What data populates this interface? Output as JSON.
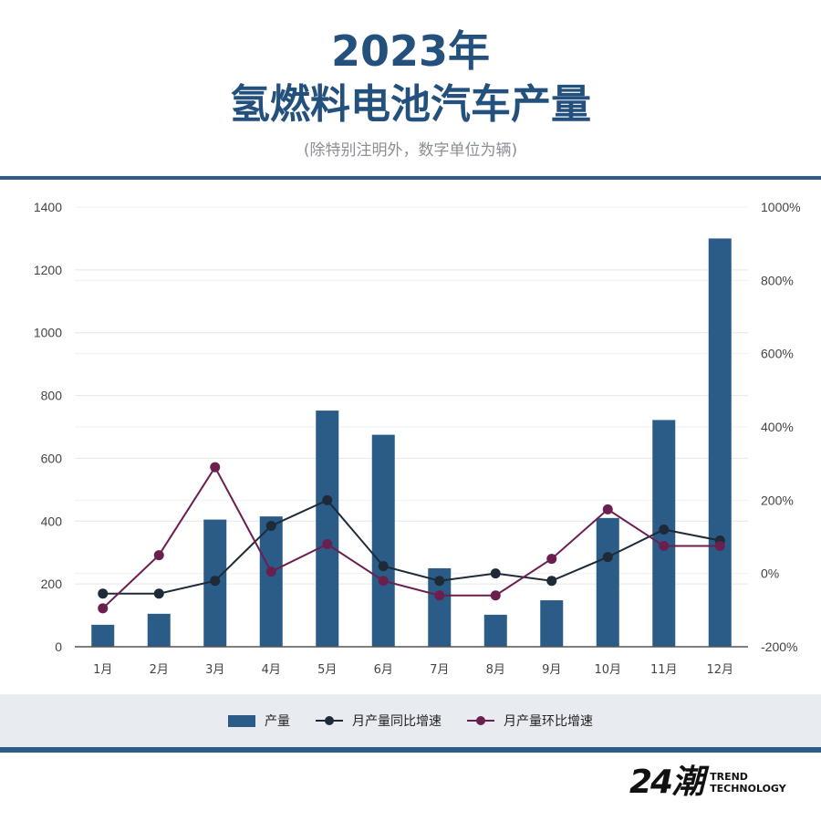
{
  "title": "2023年",
  "subtitle_title": "氢燃料电池汽车产量",
  "note": "(除特别注明外，数字单位为辆)",
  "legend": {
    "bar_label": "产量",
    "yoy_label": "月产量同比增速",
    "mom_label": "月产量环比增速"
  },
  "logo": {
    "mark": "24潮",
    "line1": "TREND",
    "line2": "TECHNOLOGY"
  },
  "colors": {
    "bar": "#2b5c88",
    "yoy": "#1e2a38",
    "mom": "#6b1f4e",
    "title": "#23507d"
  },
  "chart_data": {
    "type": "bar",
    "categories": [
      "1月",
      "2月",
      "3月",
      "4月",
      "5月",
      "6月",
      "7月",
      "8月",
      "9月",
      "10月",
      "11月",
      "12月"
    ],
    "series": [
      {
        "name": "产量",
        "type": "bar",
        "axis": "left",
        "values": [
          70,
          105,
          405,
          415,
          752,
          675,
          250,
          102,
          148,
          410,
          722,
          1300
        ]
      },
      {
        "name": "月产量同比增速",
        "type": "line",
        "axis": "right",
        "values": [
          -55,
          -55,
          -20,
          130,
          200,
          20,
          -20,
          0,
          -20,
          45,
          120,
          90
        ]
      },
      {
        "name": "月产量环比增速",
        "type": "line",
        "axis": "right",
        "values": [
          -95,
          50,
          290,
          5,
          80,
          -20,
          -60,
          -60,
          40,
          175,
          75,
          75
        ]
      }
    ],
    "y_left": {
      "ylim": [
        0,
        1400
      ],
      "ticks": [
        "0",
        "200",
        "400",
        "600",
        "800",
        "1000",
        "1200",
        "1400"
      ]
    },
    "y_right": {
      "ylim": [
        -200,
        1000
      ],
      "ticks": [
        "-200%",
        "0%",
        "200%",
        "400%",
        "600%",
        "800%",
        "1000%"
      ]
    },
    "grid": true,
    "legend_position": "bottom"
  }
}
